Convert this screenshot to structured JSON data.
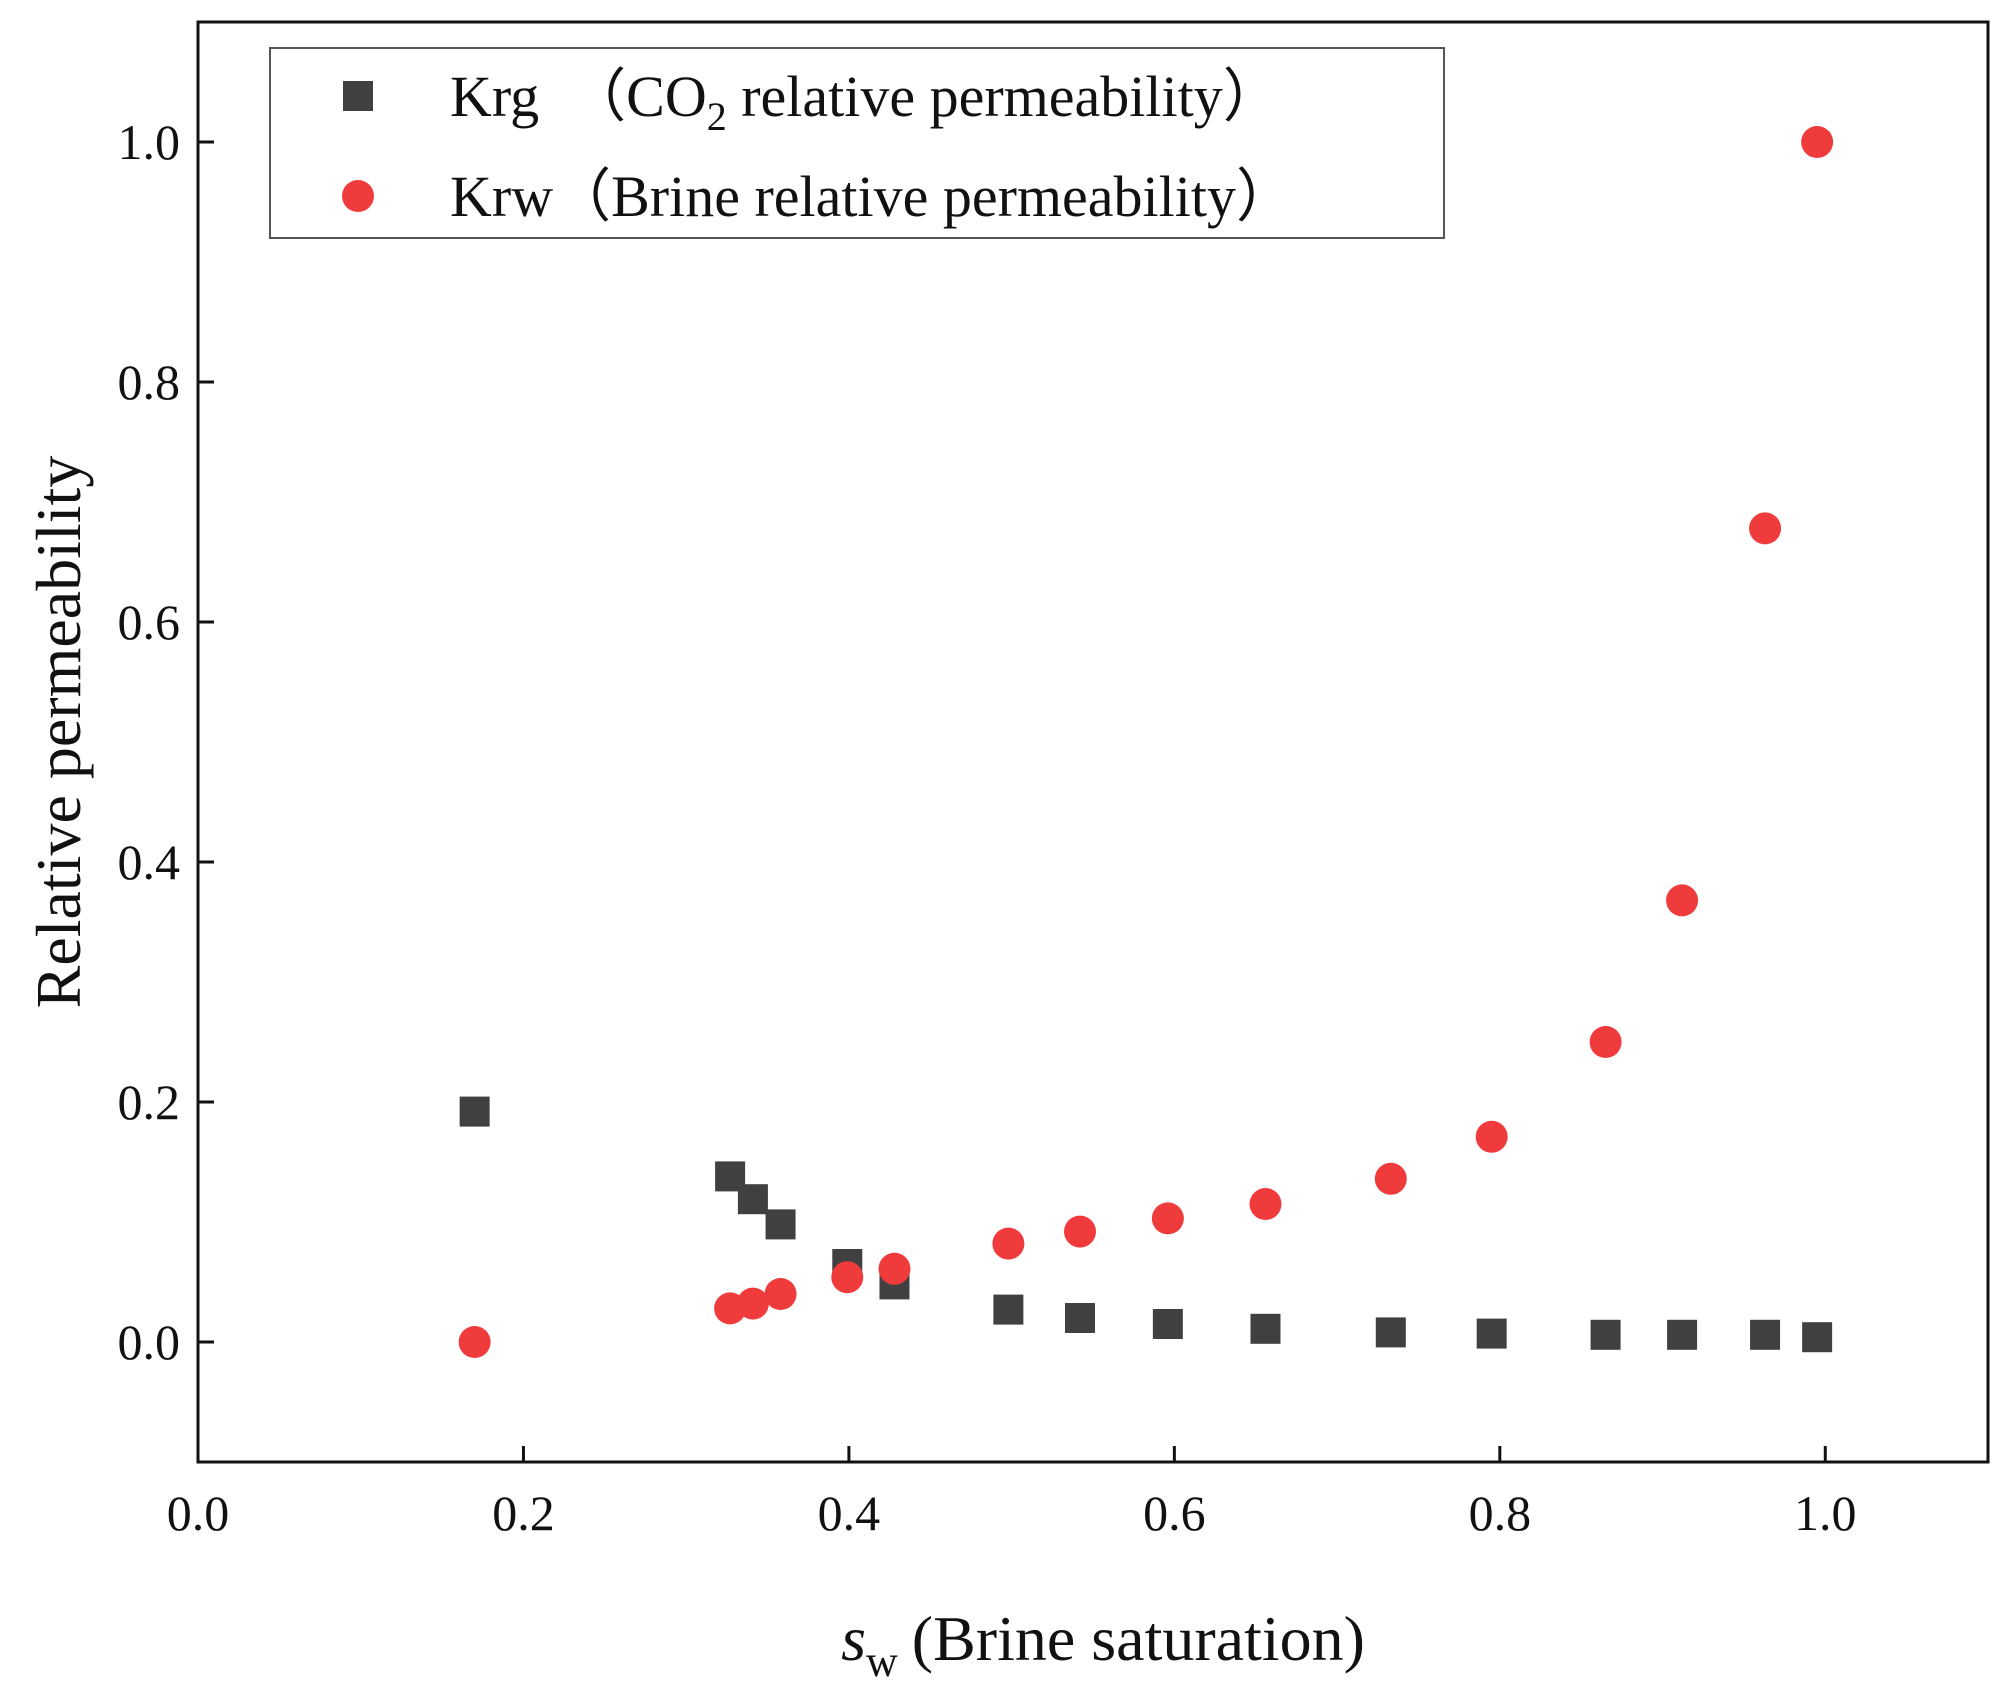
{
  "chart_data": {
    "type": "scatter",
    "xlabel": {
      "symbol": "s",
      "subscript": "w",
      "text": "(Brine saturation)"
    },
    "ylabel": "Relative permeability",
    "xlim": [
      0.0,
      1.1
    ],
    "ylim": [
      -0.1,
      1.1
    ],
    "xticks": [
      0.0,
      0.2,
      0.4,
      0.6,
      0.8,
      1.0
    ],
    "xtick_labels": [
      "0.0",
      "0.2",
      "0.4",
      "0.6",
      "0.8",
      "1.0"
    ],
    "yticks": [
      0.0,
      0.2,
      0.4,
      0.6,
      0.8,
      1.0
    ],
    "ytick_labels": [
      "0.0",
      "0.2",
      "0.4",
      "0.6",
      "0.8",
      "1.0"
    ],
    "legend_placement": "top-left",
    "grid": false,
    "series": [
      {
        "name": "Krg",
        "legend": {
          "prefix": "Krg　（CO",
          "sub": "2",
          "suffix": " relative permeability）"
        },
        "marker": "square",
        "color": "#404040",
        "points": [
          [
            0.17,
            0.192
          ],
          [
            0.327,
            0.138
          ],
          [
            0.341,
            0.119
          ],
          [
            0.358,
            0.098
          ],
          [
            0.399,
            0.065
          ],
          [
            0.428,
            0.048
          ],
          [
            0.498,
            0.027
          ],
          [
            0.542,
            0.02
          ],
          [
            0.596,
            0.015
          ],
          [
            0.656,
            0.011
          ],
          [
            0.733,
            0.008
          ],
          [
            0.795,
            0.007
          ],
          [
            0.865,
            0.006
          ],
          [
            0.912,
            0.006
          ],
          [
            0.963,
            0.006
          ],
          [
            0.995,
            0.004
          ]
        ]
      },
      {
        "name": "Krw",
        "legend": {
          "prefix": "Krw（Brine relative permeability）",
          "sub": "",
          "suffix": ""
        },
        "marker": "circle",
        "color": "#ef3b3b",
        "points": [
          [
            0.17,
            0.0
          ],
          [
            0.327,
            0.028
          ],
          [
            0.341,
            0.032
          ],
          [
            0.358,
            0.04
          ],
          [
            0.399,
            0.054
          ],
          [
            0.428,
            0.061
          ],
          [
            0.498,
            0.082
          ],
          [
            0.542,
            0.092
          ],
          [
            0.596,
            0.103
          ],
          [
            0.656,
            0.115
          ],
          [
            0.733,
            0.136
          ],
          [
            0.795,
            0.171
          ],
          [
            0.865,
            0.25
          ],
          [
            0.912,
            0.368
          ],
          [
            0.963,
            0.678
          ],
          [
            0.995,
            1.0
          ]
        ]
      }
    ]
  }
}
